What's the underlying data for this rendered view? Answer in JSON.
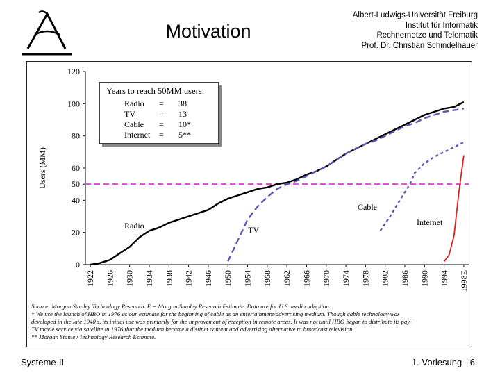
{
  "slide": {
    "title": "Motivation",
    "institution": [
      "Albert-Ludwigs-Universität Freiburg",
      "Institut für Informatik",
      "Rechnernetze und Telematik",
      "Prof. Dr. Christian Schindelhauer"
    ],
    "footer_left": "Systeme-II",
    "footer_right": "1. Vorlesung - 6"
  },
  "colors": {
    "radio": "#000000",
    "tv": "#5a5ab4",
    "cable": "#5a5ab4",
    "internet": "#e02020",
    "threshold": "#e040e0"
  },
  "chart_data": {
    "type": "line",
    "ylabel": "Users (MM)",
    "xlabel": "",
    "ylim": [
      0,
      120
    ],
    "xlim": [
      1921,
      1999
    ],
    "yticks": [
      0,
      20,
      40,
      50,
      60,
      80,
      100,
      120
    ],
    "xtick_labels": [
      "1922",
      "1926",
      "1930",
      "1934",
      "1938",
      "1942",
      "1946",
      "1950",
      "1954",
      "1958",
      "1962",
      "1966",
      "1970",
      "1974",
      "1978",
      "1982",
      "1986",
      "1990",
      "1994",
      "1998E"
    ],
    "xtick_values": [
      1922,
      1926,
      1930,
      1934,
      1938,
      1942,
      1946,
      1950,
      1954,
      1958,
      1962,
      1966,
      1970,
      1974,
      1978,
      1982,
      1986,
      1990,
      1994,
      1998
    ],
    "threshold": {
      "value": 50,
      "label": ""
    },
    "series": [
      {
        "name": "Radio",
        "label": "Radio",
        "style": "solid",
        "x": [
          1922,
          1924,
          1926,
          1928,
          1930,
          1932,
          1934,
          1936,
          1938,
          1940,
          1942,
          1944,
          1946,
          1948,
          1950,
          1952,
          1954,
          1956,
          1958,
          1960,
          1962,
          1964,
          1966,
          1968,
          1970,
          1972,
          1974,
          1976,
          1978,
          1980,
          1982,
          1984,
          1986,
          1988,
          1990,
          1992,
          1994,
          1996,
          1998
        ],
        "y": [
          0,
          1,
          3,
          7,
          11,
          17,
          21,
          23,
          26,
          28,
          30,
          32,
          34,
          38,
          41,
          43,
          45,
          47,
          48,
          50,
          51,
          53,
          56,
          58,
          61,
          65,
          69,
          72,
          75,
          78,
          81,
          84,
          87,
          90,
          93,
          95,
          97,
          98,
          101
        ]
      },
      {
        "name": "TV",
        "label": "TV",
        "style": "dashed",
        "x": [
          1950,
          1952,
          1954,
          1956,
          1958,
          1960,
          1962,
          1964,
          1966,
          1968,
          1970,
          1972,
          1974,
          1976,
          1978,
          1980,
          1982,
          1984,
          1986,
          1988,
          1990,
          1992,
          1994,
          1996,
          1998
        ],
        "y": [
          2,
          15,
          28,
          36,
          42,
          47,
          50,
          52,
          55,
          58,
          61,
          65,
          69,
          72,
          75,
          77,
          80,
          83,
          86,
          88,
          91,
          93,
          95,
          96,
          97
        ]
      },
      {
        "name": "Cable",
        "label": "Cable",
        "style": "dotted",
        "x": [
          1981,
          1983,
          1985,
          1987,
          1988,
          1990,
          1992,
          1994,
          1996,
          1998
        ],
        "y": [
          21,
          30,
          40,
          50,
          57,
          63,
          67,
          70,
          73,
          76
        ]
      },
      {
        "name": "Internet",
        "label": "Internet",
        "style": "solid",
        "x": [
          1994,
          1995,
          1996,
          1997,
          1998
        ],
        "y": [
          2,
          6,
          18,
          45,
          68
        ]
      }
    ],
    "legend": {
      "title": "Years to reach 50MM users:",
      "rows": [
        {
          "name": "Radio",
          "eq": "=",
          "years": "38"
        },
        {
          "name": "TV",
          "eq": "=",
          "years": "13"
        },
        {
          "name": "Cable",
          "eq": "=",
          "years": "10*"
        },
        {
          "name": "Internet",
          "eq": "=",
          "years": "5**"
        }
      ],
      "placement": "top-left"
    },
    "notes": [
      "Source: Morgan Stanley Technology Research. E = Morgan Stanley Research Estimate. Data are for U.S. media adoption.",
      "* We use the launch of HBO in 1976 as our estimate for the beginning of cable as an entertainment/advertising medium. Though cable technology was",
      "developed in the late 1940's, its initial use was primarily for the improvement of reception in remote areas. It was not until HBO began to distribute its pay-",
      "TV movie service via satellite in 1976 that the medium became a distinct content and advertising alternative to broadcast television.",
      "** Morgan Stanley Technology Research Estimate."
    ]
  }
}
